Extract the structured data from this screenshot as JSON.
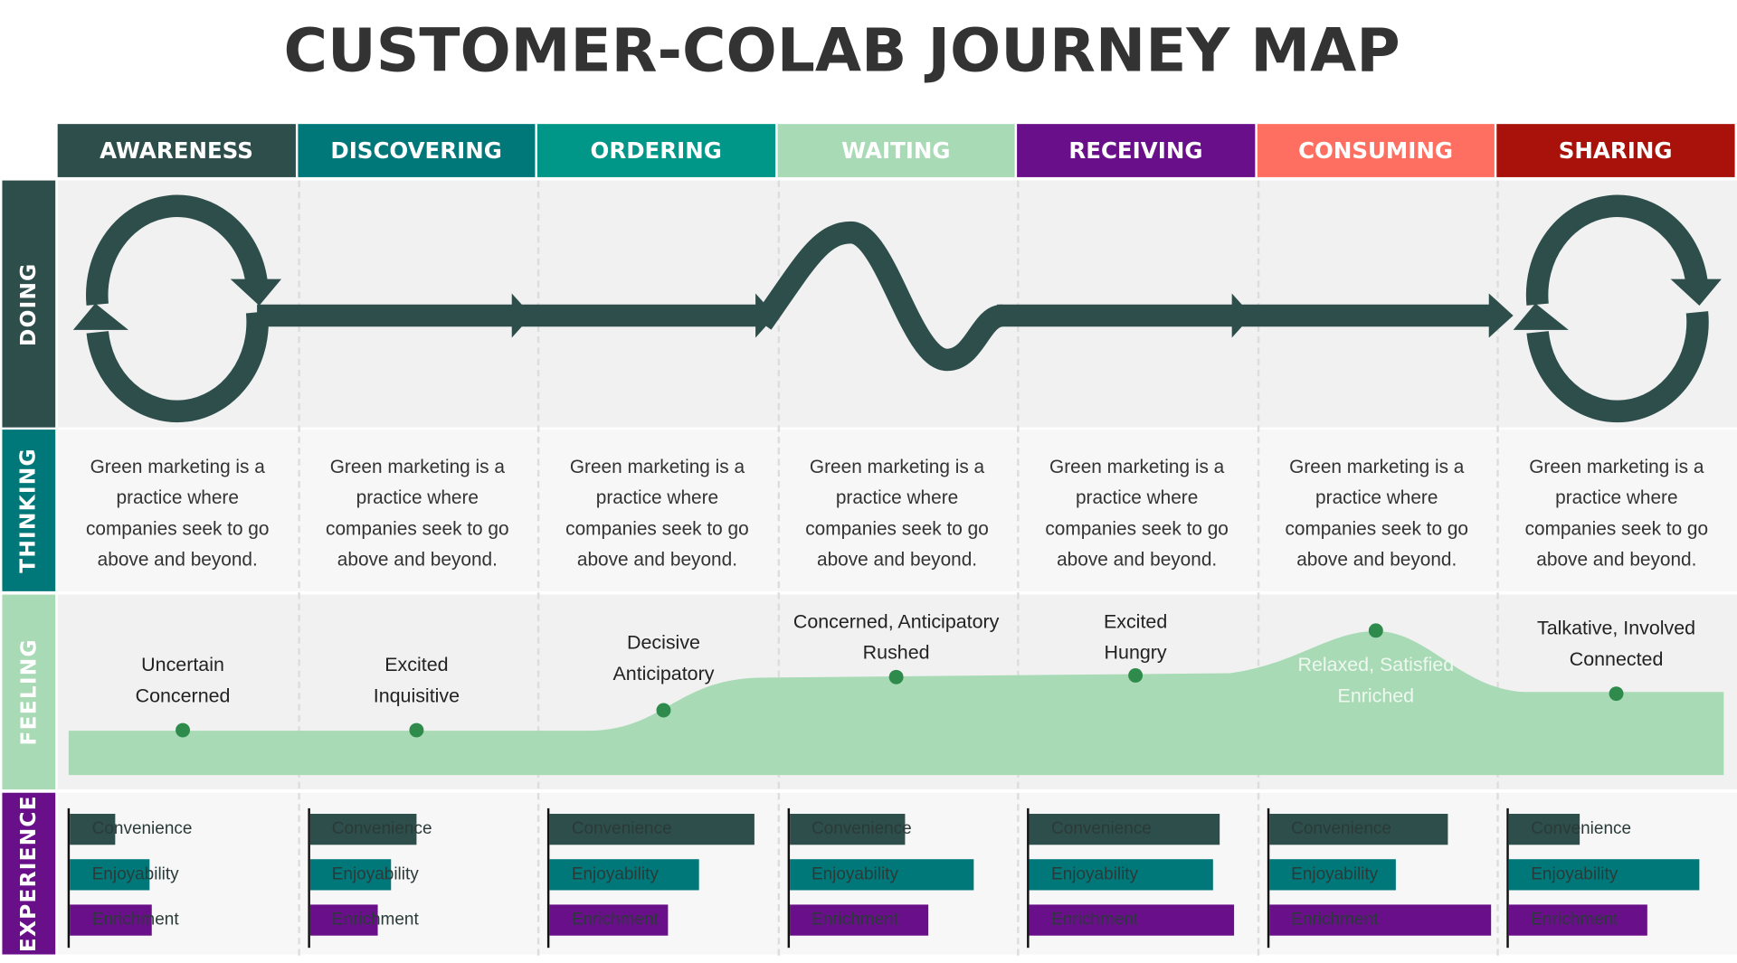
{
  "title": "CUSTOMER-COLAB JOURNEY MAP",
  "colors": {
    "dark": "#2E4E4B",
    "teal": "#00787A",
    "green_teal": "#009688",
    "light_green": "#A8DAB5",
    "purple": "#6A0F8A",
    "coral": "#FF6F61",
    "red": "#A8120A",
    "dot": "#2E8B4C"
  },
  "stages": [
    {
      "label": "AWARENESS",
      "color": "#2E4E4B"
    },
    {
      "label": "DISCOVERING",
      "color": "#00787A"
    },
    {
      "label": "ORDERING",
      "color": "#009688"
    },
    {
      "label": "WAITING",
      "color": "#A8DAB5"
    },
    {
      "label": "RECEIVING",
      "color": "#6A0F8A"
    },
    {
      "label": "CONSUMING",
      "color": "#FF6F61"
    },
    {
      "label": "SHARING",
      "color": "#A8120A"
    }
  ],
  "rows": [
    {
      "label": "DOING",
      "color": "#2E4E4B"
    },
    {
      "label": "THINKING",
      "color": "#00787A"
    },
    {
      "label": "FEELING",
      "color": "#A8DAB5"
    },
    {
      "label": "EXPERIENCE",
      "color": "#6A0F8A"
    }
  ],
  "thinking": [
    "Green marketing is a practice where companies seek to go above and beyond.",
    "Green marketing is a practice where companies seek to go above and beyond.",
    "Green marketing is a practice where companies seek to go above and beyond.",
    "Green marketing is a practice where companies seek to go above and beyond.",
    "Green marketing is a practice where companies seek to go above and beyond.",
    "Green marketing is a practice where companies seek to go above and beyond.",
    "Green marketing is a practice where companies seek to go above and beyond."
  ],
  "feeling": [
    {
      "line1": "Uncertain",
      "line2": "Concerned",
      "level": 27
    },
    {
      "line1": "Excited",
      "line2": "Inquisitive",
      "level": 27
    },
    {
      "line1": "Decisive",
      "line2": "Anticipatory",
      "level": 39
    },
    {
      "line1": "Concerned, Anticipatory",
      "line2": "Rushed",
      "level": 59
    },
    {
      "line1": "Excited",
      "line2": "Hungry",
      "level": 60
    },
    {
      "line1": "Relaxed, Satisfied",
      "line2": "Enriched",
      "level": 87
    },
    {
      "line1": "Talkative, Involved",
      "line2": "Connected",
      "level": 49
    }
  ],
  "experience": {
    "metrics": [
      {
        "label": "Convenience",
        "color": "#2E4E4B"
      },
      {
        "label": "Enjoyability",
        "color": "#00787A"
      },
      {
        "label": "Enrichment",
        "color": "#6A0F8A"
      }
    ],
    "values_percent": [
      [
        20,
        35,
        36
      ],
      [
        47,
        36,
        30
      ],
      [
        90,
        66,
        52
      ],
      [
        51,
        81,
        61
      ],
      [
        84,
        81,
        90
      ],
      [
        79,
        56,
        98
      ],
      [
        31,
        84,
        61
      ]
    ]
  }
}
